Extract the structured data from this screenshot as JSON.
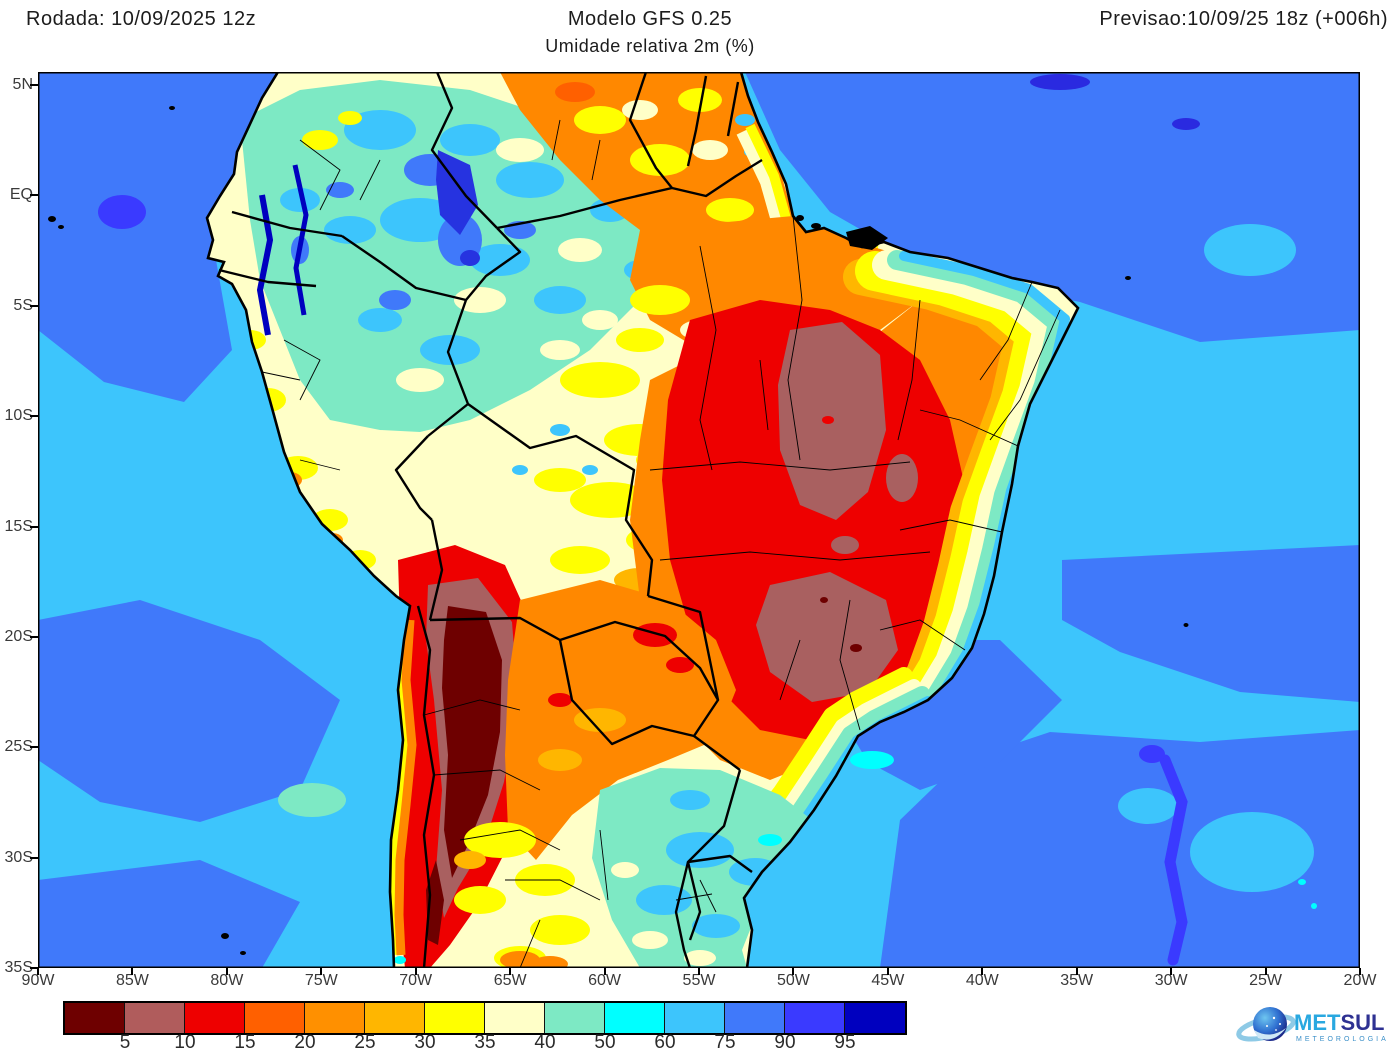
{
  "header": {
    "run_label": "Rodada: 10/09/2025 12z",
    "model_label": "Modelo GFS 0.25",
    "forecast_label": "Previsao:10/09/25 18z (+006h)",
    "variable_label": "Umidade relativa 2m (%)"
  },
  "axes": {
    "lat": [
      "5N",
      "EQ",
      "5S",
      "10S",
      "15S",
      "20S",
      "25S",
      "30S",
      "35S"
    ],
    "lon": [
      "90W",
      "85W",
      "80W",
      "75W",
      "70W",
      "65W",
      "60W",
      "55W",
      "50W",
      "45W",
      "40W",
      "35W",
      "30W",
      "25W",
      "20W"
    ]
  },
  "colorbar": {
    "labels": [
      "5",
      "10",
      "15",
      "20",
      "25",
      "30",
      "35",
      "40",
      "50",
      "60",
      "75",
      "90",
      "95"
    ],
    "colors": [
      "#6e0000",
      "#b05c5c",
      "#ee0000",
      "#ff6000",
      "#ff9000",
      "#ffb600",
      "#ffff00",
      "#ffffc8",
      "#7de9c4",
      "#00ffff",
      "#3dc5fc",
      "#4079fa",
      "#3a3aff",
      "#0000bf"
    ]
  },
  "logo": {
    "met": "MET",
    "sul": "SUL",
    "tagline": "METEOROLOGIA"
  },
  "chart_data": {
    "type": "heatmap",
    "title": "Umidade relativa 2m (%)",
    "model": "Modelo GFS 0.25",
    "run": "Rodada: 10/09/2025 12z",
    "valid": "Previsao:10/09/25 18z (+006h)",
    "scale_percent_breaks": [
      5,
      10,
      15,
      20,
      25,
      30,
      35,
      40,
      50,
      60,
      75,
      90,
      95
    ],
    "scale_colors": [
      "#6e0000",
      "#b05c5c",
      "#ee0000",
      "#ff6000",
      "#ff9000",
      "#ffb600",
      "#ffff00",
      "#ffffc8",
      "#7de9c4",
      "#00ffff",
      "#3dc5fc",
      "#4079fa",
      "#3a3aff",
      "#0000bf"
    ],
    "lat_range": [
      "5N",
      "35S"
    ],
    "lon_range": [
      "90W",
      "20W"
    ]
  }
}
